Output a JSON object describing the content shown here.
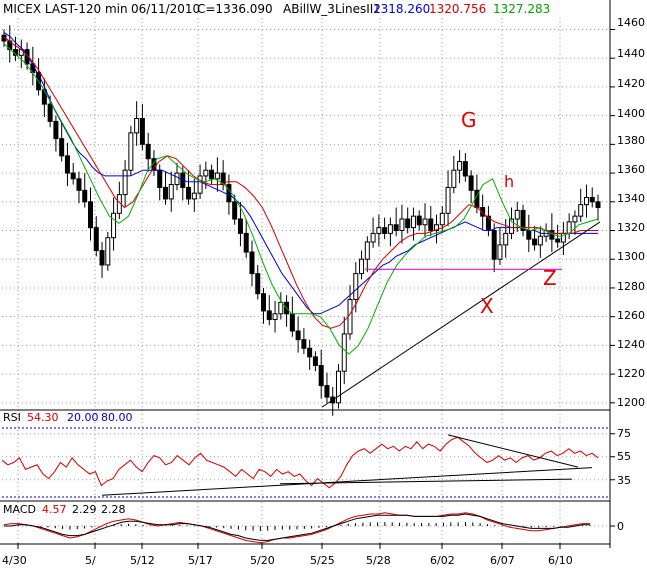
{
  "header": {
    "title": "MICEX LAST-120 min",
    "date": "06/11/2010",
    "close": "C=1336.090",
    "indicator": "ABillW_3LinesII2",
    "val_blue": "1318.260",
    "val_red": "1320.756",
    "val_green": "1327.283"
  },
  "rsi": {
    "label": "RSI",
    "value": "54.30",
    "low": "20.00",
    "high": "80.00"
  },
  "macd": {
    "label": "MACD",
    "v1": "4.57",
    "v2": "2.29",
    "v3": "2.28"
  },
  "annotations": {
    "g": "G",
    "h": "h",
    "z": "Z",
    "x": "X"
  },
  "colors": {
    "blue": "#0000d0",
    "red": "#d00000",
    "green": "#00b000",
    "magenta": "#c000c0"
  },
  "chart_data": [
    {
      "type": "candlestick",
      "y_ticks": [
        "1460",
        "1440",
        "1420",
        "1400",
        "1380",
        "1360",
        "1340",
        "1320",
        "1300",
        "1280",
        "1260",
        "1240",
        "1220",
        "1200"
      ],
      "ylim": [
        1195,
        1468
      ],
      "x_ticks": [
        "4/30",
        "5/",
        "5/12",
        "5/17",
        "5/20",
        "5/25",
        "5/28",
        "6/02",
        "6/07",
        "6/10"
      ],
      "close": [
        1452,
        1446,
        1442,
        1446,
        1436,
        1430,
        1418,
        1408,
        1396,
        1384,
        1372,
        1360,
        1356,
        1348,
        1340,
        1322,
        1306,
        1296,
        1315,
        1332,
        1345,
        1362,
        1388,
        1398,
        1380,
        1370,
        1362,
        1350,
        1342,
        1352,
        1360,
        1350,
        1342,
        1346,
        1358,
        1362,
        1356,
        1360,
        1352,
        1340,
        1328,
        1318,
        1305,
        1290,
        1276,
        1264,
        1258,
        1262,
        1270,
        1262,
        1250,
        1244,
        1238,
        1232,
        1226,
        1212,
        1204,
        1200,
        1222,
        1248,
        1272,
        1290,
        1300,
        1312,
        1318,
        1322,
        1318,
        1324,
        1320,
        1328,
        1322,
        1330,
        1324,
        1328,
        1320,
        1324,
        1332,
        1350,
        1362,
        1368,
        1358,
        1348,
        1336,
        1330,
        1320,
        1300,
        1310,
        1318,
        1328,
        1334,
        1320,
        1314,
        1310,
        1316,
        1320,
        1314,
        1312,
        1318,
        1326,
        1330,
        1338,
        1343,
        1340,
        1336
      ],
      "lines": {
        "blue": [
          1458,
          1455,
          1450,
          1446,
          1440,
          1432,
          1424,
          1414,
          1404,
          1396,
          1388,
          1380,
          1374,
          1370,
          1364,
          1360,
          1358,
          1358,
          1358,
          1358,
          1358,
          1360,
          1362,
          1362,
          1362,
          1362,
          1360,
          1358,
          1356,
          1354,
          1354,
          1354,
          1352,
          1350,
          1348,
          1346,
          1344,
          1340,
          1336,
          1330,
          1322,
          1314,
          1306,
          1298,
          1290,
          1284,
          1278,
          1272,
          1266,
          1262,
          1262,
          1264,
          1266,
          1268,
          1272,
          1276,
          1280,
          1284,
          1288,
          1292,
          1296,
          1298,
          1302,
          1304,
          1306,
          1310,
          1312,
          1314,
          1316,
          1318,
          1320,
          1322,
          1324,
          1326,
          1324,
          1322,
          1320,
          1320,
          1322,
          1322,
          1322,
          1322,
          1322,
          1320,
          1320,
          1318,
          1318,
          1318,
          1318,
          1318,
          1318,
          1318,
          1318,
          1318,
          1318
        ],
        "red": [
          1455,
          1450,
          1446,
          1440,
          1432,
          1422,
          1412,
          1402,
          1392,
          1382,
          1372,
          1362,
          1352,
          1342,
          1336,
          1340,
          1350,
          1360,
          1368,
          1372,
          1370,
          1364,
          1358,
          1354,
          1352,
          1352,
          1354,
          1354,
          1350,
          1344,
          1336,
          1324,
          1310,
          1296,
          1282,
          1270,
          1260,
          1254,
          1252,
          1254,
          1260,
          1270,
          1282,
          1292,
          1300,
          1306,
          1312,
          1316,
          1318,
          1318,
          1320,
          1322,
          1326,
          1332,
          1338,
          1336,
          1330,
          1326,
          1324,
          1322,
          1322,
          1322,
          1322,
          1320,
          1318,
          1318,
          1318,
          1320,
          1320,
          1320
        ],
        "green": [
          1450,
          1444,
          1438,
          1430,
          1420,
          1408,
          1396,
          1384,
          1370,
          1356,
          1342,
          1330,
          1325,
          1330,
          1345,
          1362,
          1370,
          1372,
          1366,
          1360,
          1356,
          1354,
          1356,
          1352,
          1344,
          1332,
          1316,
          1298,
          1282,
          1270,
          1262,
          1262,
          1262,
          1260,
          1252,
          1240,
          1234,
          1240,
          1252,
          1268,
          1284,
          1296,
          1304,
          1310,
          1316,
          1318,
          1320,
          1322,
          1328,
          1340,
          1352,
          1356,
          1340,
          1326,
          1322,
          1320,
          1322,
          1318,
          1316,
          1318,
          1324,
          1326,
          1328
        ]
      }
    },
    {
      "type": "line",
      "title": "RSI",
      "y_ticks": [
        "75",
        "55",
        "35"
      ],
      "ylim": [
        20,
        80
      ],
      "values": [
        52,
        48,
        50,
        54,
        44,
        46,
        48,
        40,
        36,
        42,
        50,
        46,
        54,
        48,
        44,
        40,
        42,
        30,
        34,
        36,
        44,
        48,
        52,
        46,
        42,
        50,
        56,
        54,
        48,
        50,
        56,
        52,
        48,
        54,
        58,
        52,
        50,
        48,
        46,
        42,
        38,
        44,
        40,
        36,
        44,
        42,
        38,
        44,
        40,
        42,
        38,
        40,
        34,
        30,
        36,
        32,
        28,
        32,
        38,
        48,
        56,
        60,
        62,
        58,
        62,
        66,
        62,
        64,
        60,
        64,
        62,
        68,
        62,
        66,
        64,
        60,
        66,
        70,
        72,
        68,
        64,
        58,
        54,
        50,
        52,
        56,
        52,
        54,
        50,
        54,
        56,
        52,
        54,
        58,
        60,
        56,
        58,
        62,
        58,
        60,
        56,
        58,
        54
      ]
    },
    {
      "type": "bar",
      "title": "MACD",
      "y_ticks": [
        "0"
      ],
      "values": [
        1,
        2,
        2,
        1,
        0,
        -2,
        -4,
        -6,
        -8,
        -10,
        -9,
        -7,
        -4,
        -1,
        2,
        4,
        5,
        6,
        5,
        3,
        1,
        0,
        1,
        2,
        3,
        2,
        1,
        0,
        -2,
        -4,
        -6,
        -8,
        -10,
        -12,
        -13,
        -14,
        -13,
        -11,
        -10,
        -10,
        -9,
        -8,
        -7,
        -5,
        -3,
        0,
        3,
        6,
        8,
        9,
        10,
        10,
        11,
        10,
        9,
        9,
        8,
        8,
        8,
        8,
        9,
        10,
        10,
        11,
        10,
        8,
        5,
        3,
        1,
        -1,
        -2,
        -3,
        -4,
        -4,
        -3,
        -2,
        -1,
        0,
        1,
        2,
        2
      ],
      "signal": [
        0,
        0,
        1,
        1,
        0,
        -1,
        -3,
        -5,
        -7,
        -8,
        -8,
        -7,
        -5,
        -3,
        -1,
        1,
        3,
        4,
        4,
        3,
        2,
        1,
        1,
        1,
        2,
        2,
        1,
        0,
        -1,
        -3,
        -5,
        -7,
        -8,
        -10,
        -11,
        -12,
        -12,
        -11,
        -10,
        -9,
        -8,
        -7,
        -6,
        -4,
        -2,
        0,
        2,
        4,
        6,
        7,
        8,
        9,
        9,
        9,
        9,
        9,
        8,
        8,
        8,
        8,
        8,
        9,
        9,
        10,
        9,
        8,
        6,
        4,
        2,
        1,
        0,
        -1,
        -2,
        -2,
        -2,
        -2,
        -1,
        -1,
        0,
        1,
        1
      ]
    }
  ]
}
